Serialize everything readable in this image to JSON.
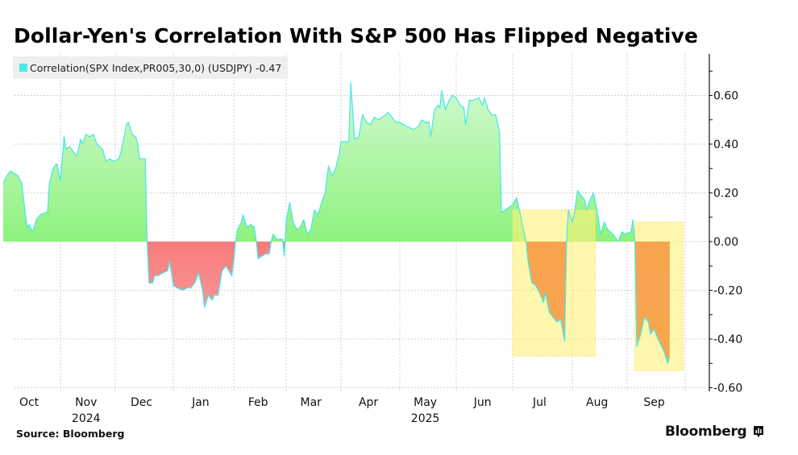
{
  "header": {
    "title": "Dollar-Yen's Correlation With S&P 500 Has Flipped Negative"
  },
  "legend": {
    "label": "Correlation(SPX Index,PR005,30,0) (USDJPY) -0.47",
    "color": "#4de8e8"
  },
  "footer": {
    "source": "Source: Bloomberg",
    "brand": "Bloomberg"
  },
  "colors": {
    "line": "#4de8e8",
    "positive_fill_top": "#c4f7c0",
    "positive_fill_bottom": "#8ef27e",
    "negative_fill_top": "#f77b7b",
    "negative_fill_bottom": "#fca3a3",
    "highlight": "#fff27a",
    "highlight_negative_fill": "#f7a04a"
  },
  "chart_data": {
    "type": "area",
    "title": "Dollar-Yen's Correlation With S&P 500 Has Flipped Negative",
    "xlabel": "",
    "ylabel": "",
    "ylim": [
      -0.6,
      0.72
    ],
    "y_ticks": [
      0.6,
      0.4,
      0.2,
      0.0,
      -0.2,
      -0.4,
      -0.6
    ],
    "y_tick_labels": [
      "0.60",
      "0.40",
      "0.20",
      "0.00",
      "-0.20",
      "-0.40",
      "-0.60"
    ],
    "y_axis_side": "right",
    "x_range": [
      "2024-09-26",
      "2025-09-30"
    ],
    "x_ticks": [
      {
        "label": "Oct",
        "date": "2024-10-15"
      },
      {
        "label": "Nov",
        "date": "2024-11-15",
        "sublabel": "2024"
      },
      {
        "label": "Dec",
        "date": "2024-12-15"
      },
      {
        "label": "Jan",
        "date": "2025-01-15"
      },
      {
        "label": "Feb",
        "date": "2025-02-14"
      },
      {
        "label": "Mar",
        "date": "2025-03-15"
      },
      {
        "label": "Apr",
        "date": "2025-04-15"
      },
      {
        "label": "May",
        "date": "2025-05-15",
        "sublabel": "2025"
      },
      {
        "label": "Jun",
        "date": "2025-06-15"
      },
      {
        "label": "Jul",
        "date": "2025-07-15"
      },
      {
        "label": "Aug",
        "date": "2025-08-15"
      },
      {
        "label": "Sep",
        "date": "2025-09-15"
      }
    ],
    "month_gridlines": [
      "2024-11-01",
      "2024-12-01",
      "2025-01-01",
      "2025-02-01",
      "2025-03-01",
      "2025-04-01",
      "2025-05-01",
      "2025-06-01",
      "2025-07-01",
      "2025-08-01",
      "2025-09-01",
      "2025-10-01"
    ],
    "grid": true,
    "legend_position": "top-left",
    "series": [
      {
        "name": "Correlation(SPX Index,PR005,30,0) (USDJPY)",
        "last_value": -0.47,
        "points": [
          [
            "2024-10-01",
            0.24
          ],
          [
            "2024-10-03",
            0.27
          ],
          [
            "2024-10-05",
            0.29
          ],
          [
            "2024-10-07",
            0.28
          ],
          [
            "2024-10-09",
            0.27
          ],
          [
            "2024-10-11",
            0.24
          ],
          [
            "2024-10-13",
            0.11
          ],
          [
            "2024-10-14",
            0.06
          ],
          [
            "2024-10-15",
            0.07
          ],
          [
            "2024-10-17",
            0.04
          ],
          [
            "2024-10-19",
            0.09
          ],
          [
            "2024-10-21",
            0.11
          ],
          [
            "2024-10-24",
            0.12
          ],
          [
            "2024-10-25",
            0.12
          ],
          [
            "2024-10-26",
            0.24
          ],
          [
            "2024-10-28",
            0.3
          ],
          [
            "2024-10-30",
            0.32
          ],
          [
            "2024-11-01",
            0.25
          ],
          [
            "2024-11-03",
            0.43
          ],
          [
            "2024-11-04",
            0.38
          ],
          [
            "2024-11-06",
            0.39
          ],
          [
            "2024-11-08",
            0.37
          ],
          [
            "2024-11-10",
            0.35
          ],
          [
            "2024-11-12",
            0.42
          ],
          [
            "2024-11-13",
            0.4
          ],
          [
            "2024-11-15",
            0.44
          ],
          [
            "2024-11-17",
            0.43
          ],
          [
            "2024-11-19",
            0.44
          ],
          [
            "2024-11-21",
            0.4
          ],
          [
            "2024-11-24",
            0.38
          ],
          [
            "2024-11-26",
            0.33
          ],
          [
            "2024-11-28",
            0.34
          ],
          [
            "2024-11-30",
            0.33
          ],
          [
            "2024-12-03",
            0.34
          ],
          [
            "2024-12-05",
            0.4
          ],
          [
            "2024-12-07",
            0.48
          ],
          [
            "2024-12-08",
            0.49
          ],
          [
            "2024-12-10",
            0.44
          ],
          [
            "2024-12-12",
            0.43
          ],
          [
            "2024-12-13",
            0.4
          ],
          [
            "2024-12-14",
            0.34
          ],
          [
            "2024-12-17",
            0.34
          ],
          [
            "2024-12-18",
            0.0
          ],
          [
            "2024-12-19",
            -0.17
          ],
          [
            "2024-12-21",
            -0.17
          ],
          [
            "2024-12-22",
            -0.14
          ],
          [
            "2024-12-24",
            -0.14
          ],
          [
            "2024-12-26",
            -0.13
          ],
          [
            "2024-12-29",
            -0.12
          ],
          [
            "2024-12-30",
            -0.08
          ],
          [
            "2025-01-01",
            -0.18
          ],
          [
            "2025-01-03",
            -0.19
          ],
          [
            "2025-01-06",
            -0.2
          ],
          [
            "2025-01-08",
            -0.19
          ],
          [
            "2025-01-10",
            -0.19
          ],
          [
            "2025-01-12",
            -0.17
          ],
          [
            "2025-01-14",
            -0.13
          ],
          [
            "2025-01-16",
            -0.2
          ],
          [
            "2025-01-17",
            -0.27
          ],
          [
            "2025-01-19",
            -0.22
          ],
          [
            "2025-01-21",
            -0.24
          ],
          [
            "2025-01-22",
            -0.22
          ],
          [
            "2025-01-24",
            -0.22
          ],
          [
            "2025-01-26",
            -0.12
          ],
          [
            "2025-01-28",
            -0.1
          ],
          [
            "2025-01-31",
            -0.14
          ],
          [
            "2025-02-01",
            -0.08
          ],
          [
            "2025-02-02",
            0.0
          ],
          [
            "2025-02-03",
            0.05
          ],
          [
            "2025-02-05",
            0.08
          ],
          [
            "2025-02-06",
            0.11
          ],
          [
            "2025-02-08",
            0.06
          ],
          [
            "2025-02-10",
            0.07
          ],
          [
            "2025-02-12",
            0.06
          ],
          [
            "2025-02-13",
            0.0
          ],
          [
            "2025-02-14",
            -0.07
          ],
          [
            "2025-02-16",
            -0.06
          ],
          [
            "2025-02-18",
            -0.05
          ],
          [
            "2025-02-20",
            -0.05
          ],
          [
            "2025-02-21",
            0.0
          ],
          [
            "2025-02-22",
            0.03
          ],
          [
            "2025-02-24",
            0.01
          ],
          [
            "2025-02-27",
            0.01
          ],
          [
            "2025-02-28",
            -0.06
          ],
          [
            "2025-03-01",
            0.08
          ],
          [
            "2025-03-03",
            0.16
          ],
          [
            "2025-03-05",
            0.08
          ],
          [
            "2025-03-07",
            0.05
          ],
          [
            "2025-03-09",
            0.06
          ],
          [
            "2025-03-11",
            0.09
          ],
          [
            "2025-03-13",
            0.03
          ],
          [
            "2025-03-15",
            0.05
          ],
          [
            "2025-03-17",
            0.13
          ],
          [
            "2025-03-19",
            0.11
          ],
          [
            "2025-03-21",
            0.16
          ],
          [
            "2025-03-23",
            0.2
          ],
          [
            "2025-03-25",
            0.31
          ],
          [
            "2025-03-27",
            0.27
          ],
          [
            "2025-03-29",
            0.3
          ],
          [
            "2025-03-31",
            0.36
          ],
          [
            "2025-04-01",
            0.41
          ],
          [
            "2025-04-03",
            0.41
          ],
          [
            "2025-04-05",
            0.41
          ],
          [
            "2025-04-06",
            0.65
          ],
          [
            "2025-04-08",
            0.42
          ],
          [
            "2025-04-10",
            0.43
          ],
          [
            "2025-04-12",
            0.52
          ],
          [
            "2025-04-14",
            0.49
          ],
          [
            "2025-04-16",
            0.48
          ],
          [
            "2025-04-18",
            0.51
          ],
          [
            "2025-04-20",
            0.5
          ],
          [
            "2025-04-22",
            0.51
          ],
          [
            "2025-04-25",
            0.53
          ],
          [
            "2025-04-27",
            0.51
          ],
          [
            "2025-04-29",
            0.49
          ],
          [
            "2025-05-01",
            0.49
          ],
          [
            "2025-05-03",
            0.48
          ],
          [
            "2025-05-06",
            0.47
          ],
          [
            "2025-05-08",
            0.46
          ],
          [
            "2025-05-11",
            0.47
          ],
          [
            "2025-05-13",
            0.5
          ],
          [
            "2025-05-15",
            0.49
          ],
          [
            "2025-05-17",
            0.49
          ],
          [
            "2025-05-18",
            0.43
          ],
          [
            "2025-05-20",
            0.54
          ],
          [
            "2025-05-22",
            0.56
          ],
          [
            "2025-05-23",
            0.55
          ],
          [
            "2025-05-24",
            0.62
          ],
          [
            "2025-05-26",
            0.54
          ],
          [
            "2025-05-28",
            0.58
          ],
          [
            "2025-05-30",
            0.6
          ],
          [
            "2025-06-01",
            0.59
          ],
          [
            "2025-06-03",
            0.56
          ],
          [
            "2025-06-05",
            0.55
          ],
          [
            "2025-06-06",
            0.48
          ],
          [
            "2025-06-08",
            0.58
          ],
          [
            "2025-06-10",
            0.58
          ],
          [
            "2025-06-13",
            0.59
          ],
          [
            "2025-06-15",
            0.56
          ],
          [
            "2025-06-16",
            0.59
          ],
          [
            "2025-06-18",
            0.54
          ],
          [
            "2025-06-20",
            0.52
          ],
          [
            "2025-06-22",
            0.52
          ],
          [
            "2025-06-24",
            0.45
          ],
          [
            "2025-06-25",
            0.12
          ],
          [
            "2025-06-27",
            0.13
          ],
          [
            "2025-07-01",
            0.15
          ],
          [
            "2025-07-03",
            0.18
          ],
          [
            "2025-07-05",
            0.11
          ],
          [
            "2025-07-06",
            0.07
          ],
          [
            "2025-07-08",
            0.0
          ],
          [
            "2025-07-09",
            -0.08
          ],
          [
            "2025-07-11",
            -0.17
          ],
          [
            "2025-07-13",
            -0.18
          ],
          [
            "2025-07-15",
            -0.21
          ],
          [
            "2025-07-17",
            -0.25
          ],
          [
            "2025-07-18",
            -0.21
          ],
          [
            "2025-07-20",
            -0.29
          ],
          [
            "2025-07-22",
            -0.31
          ],
          [
            "2025-07-24",
            -0.33
          ],
          [
            "2025-07-26",
            -0.32
          ],
          [
            "2025-07-28",
            -0.41
          ],
          [
            "2025-07-29",
            0.0
          ],
          [
            "2025-07-30",
            0.13
          ],
          [
            "2025-08-01",
            0.08
          ],
          [
            "2025-08-02",
            0.11
          ],
          [
            "2025-08-04",
            0.21
          ],
          [
            "2025-08-06",
            0.19
          ],
          [
            "2025-08-08",
            0.17
          ],
          [
            "2025-08-09",
            0.13
          ],
          [
            "2025-08-11",
            0.17
          ],
          [
            "2025-08-13",
            0.2
          ],
          [
            "2025-08-15",
            0.13
          ],
          [
            "2025-08-17",
            0.03
          ],
          [
            "2025-08-19",
            0.08
          ],
          [
            "2025-08-21",
            0.05
          ],
          [
            "2025-08-24",
            0.03
          ],
          [
            "2025-08-27",
            0.0
          ],
          [
            "2025-08-29",
            0.04
          ],
          [
            "2025-08-31",
            0.03
          ],
          [
            "2025-09-03",
            0.04
          ],
          [
            "2025-09-04",
            0.09
          ],
          [
            "2025-09-05",
            0.0
          ],
          [
            "2025-09-06",
            -0.43
          ],
          [
            "2025-09-08",
            -0.38
          ],
          [
            "2025-09-10",
            -0.31
          ],
          [
            "2025-09-12",
            -0.33
          ],
          [
            "2025-09-13",
            -0.38
          ],
          [
            "2025-09-15",
            -0.36
          ],
          [
            "2025-09-17",
            -0.4
          ],
          [
            "2025-09-20",
            -0.45
          ],
          [
            "2025-09-22",
            -0.5
          ],
          [
            "2025-09-23",
            -0.47
          ]
        ]
      }
    ],
    "annotations": [
      {
        "type": "highlight-box",
        "x_start": "2025-07-01",
        "x_end": "2025-08-14",
        "y_top": 0.13,
        "y_bottom": -0.47
      },
      {
        "type": "highlight-box",
        "x_start": "2025-09-05",
        "x_end": "2025-09-30",
        "y_top": 0.08,
        "y_bottom": -0.53
      }
    ]
  }
}
